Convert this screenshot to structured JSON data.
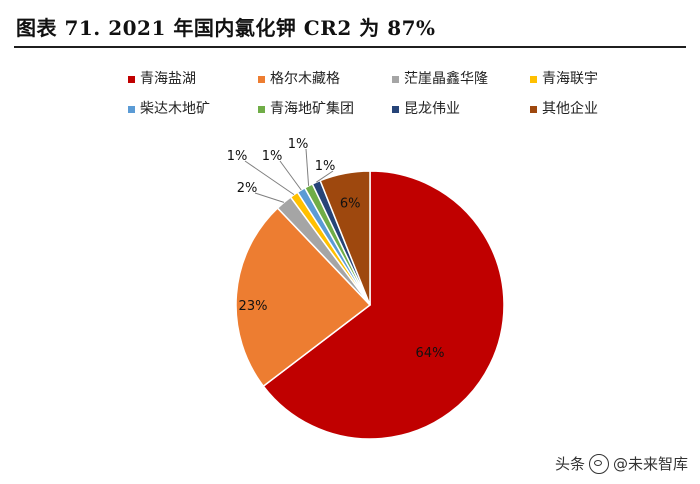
{
  "title": "图表 71. 2021 年国内氯化钾 CR2 为 87%",
  "watermark": {
    "platform": "头条",
    "account": "@未来智库"
  },
  "chart_data": {
    "type": "pie",
    "legend_position": "top",
    "slices": [
      {
        "name": "青海盐湖",
        "value": 64,
        "label": "64%",
        "color": "#c00000"
      },
      {
        "name": "格尔木藏格",
        "value": 23,
        "label": "23%",
        "color": "#ed7d31"
      },
      {
        "name": "茫崖晶鑫华隆",
        "value": 2,
        "label": "2%",
        "color": "#a5a5a5"
      },
      {
        "name": "青海联宇",
        "value": 1,
        "label": "1%",
        "color": "#ffc000"
      },
      {
        "name": "柴达木地矿",
        "value": 1,
        "label": "1%",
        "color": "#5b9bd5"
      },
      {
        "name": "青海地矿集团",
        "value": 1,
        "label": "1%",
        "color": "#70ad47"
      },
      {
        "name": "昆龙伟业",
        "value": 1,
        "label": "1%",
        "color": "#264478"
      },
      {
        "name": "其他企业",
        "value": 6,
        "label": "6%",
        "color": "#9e480e"
      }
    ]
  }
}
